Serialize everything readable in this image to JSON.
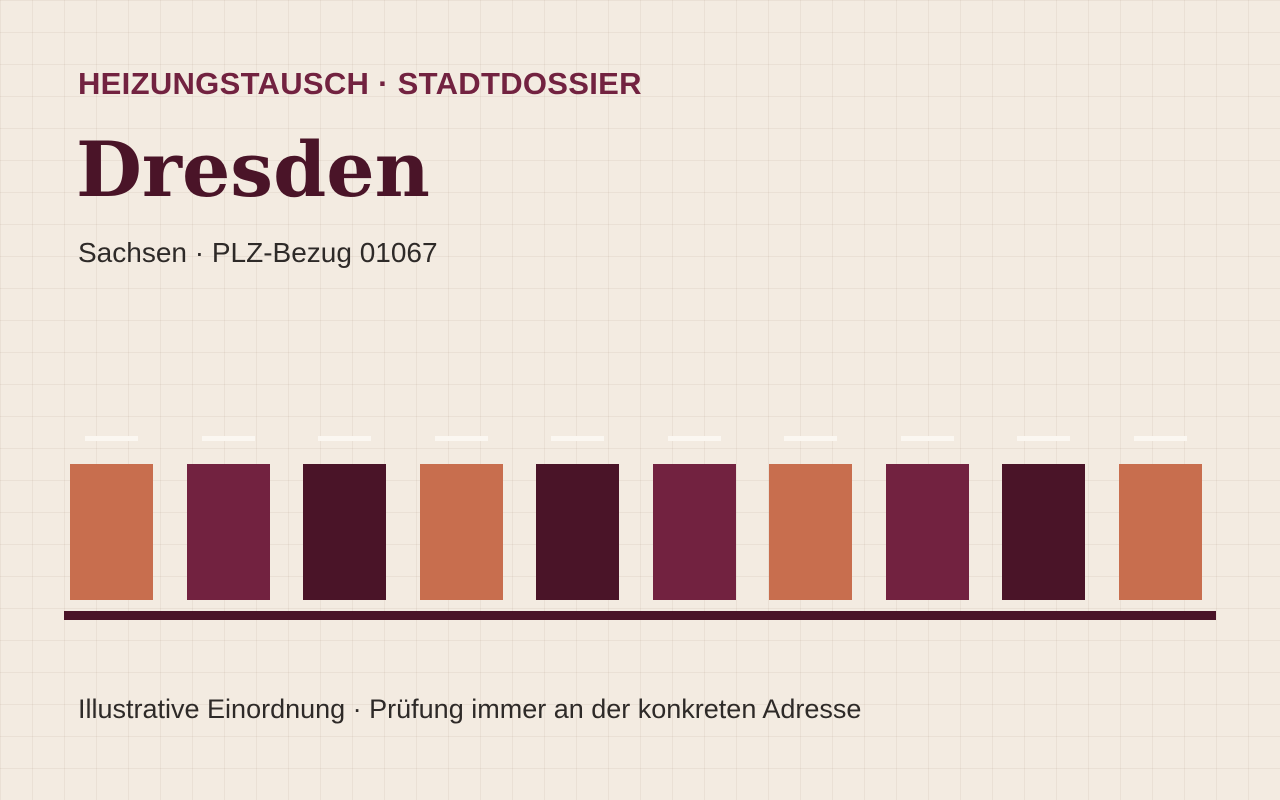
{
  "header": {
    "eyebrow": "HEIZUNGSTAUSCH · STADTDOSSIER",
    "city": "Dresden",
    "subline": "Sachsen · PLZ-Bezug 01067"
  },
  "footer": {
    "note": "Illustrative Einordnung · Prüfung immer an der konkreten Adresse"
  },
  "colors": {
    "background": "#f3ebe1",
    "eyebrow": "#722240",
    "title": "#4a1428",
    "terracotta": "#c86e4e",
    "plum": "#722240",
    "aubergine": "#4a1428",
    "dash": "#fbf7f1",
    "baseline": "#4a1428"
  },
  "blocks": [
    {
      "color": "#c86e4e"
    },
    {
      "color": "#722240"
    },
    {
      "color": "#4a1428"
    },
    {
      "color": "#c86e4e"
    },
    {
      "color": "#4a1428"
    },
    {
      "color": "#722240"
    },
    {
      "color": "#c86e4e"
    },
    {
      "color": "#722240"
    },
    {
      "color": "#4a1428"
    },
    {
      "color": "#c86e4e"
    }
  ]
}
